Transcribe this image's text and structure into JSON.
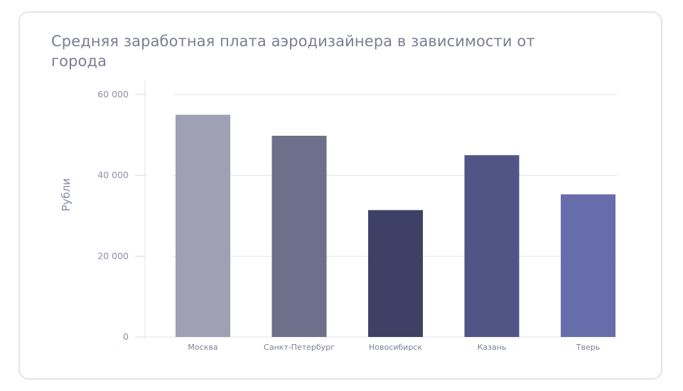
{
  "chart_data": {
    "type": "bar",
    "title": "Средняя заработная плата аэродизайнера в зависимости от города",
    "xlabel": "",
    "ylabel": "Рубли",
    "categories": [
      "Москва",
      "Санкт-Петербург",
      "Новосибирск",
      "Казань",
      "Тверь"
    ],
    "values": [
      55000,
      49800,
      31400,
      45000,
      35300
    ],
    "ylim": [
      0,
      60000
    ],
    "yticks": [
      0,
      20000,
      40000,
      60000
    ],
    "ytick_labels": [
      "0",
      "20 000",
      "40 000",
      "60 000"
    ],
    "bar_colors": [
      "#9fa0b3",
      "#6e6f8a",
      "#3e4066",
      "#515586",
      "#676dab"
    ],
    "grid": true,
    "legend": "none"
  }
}
